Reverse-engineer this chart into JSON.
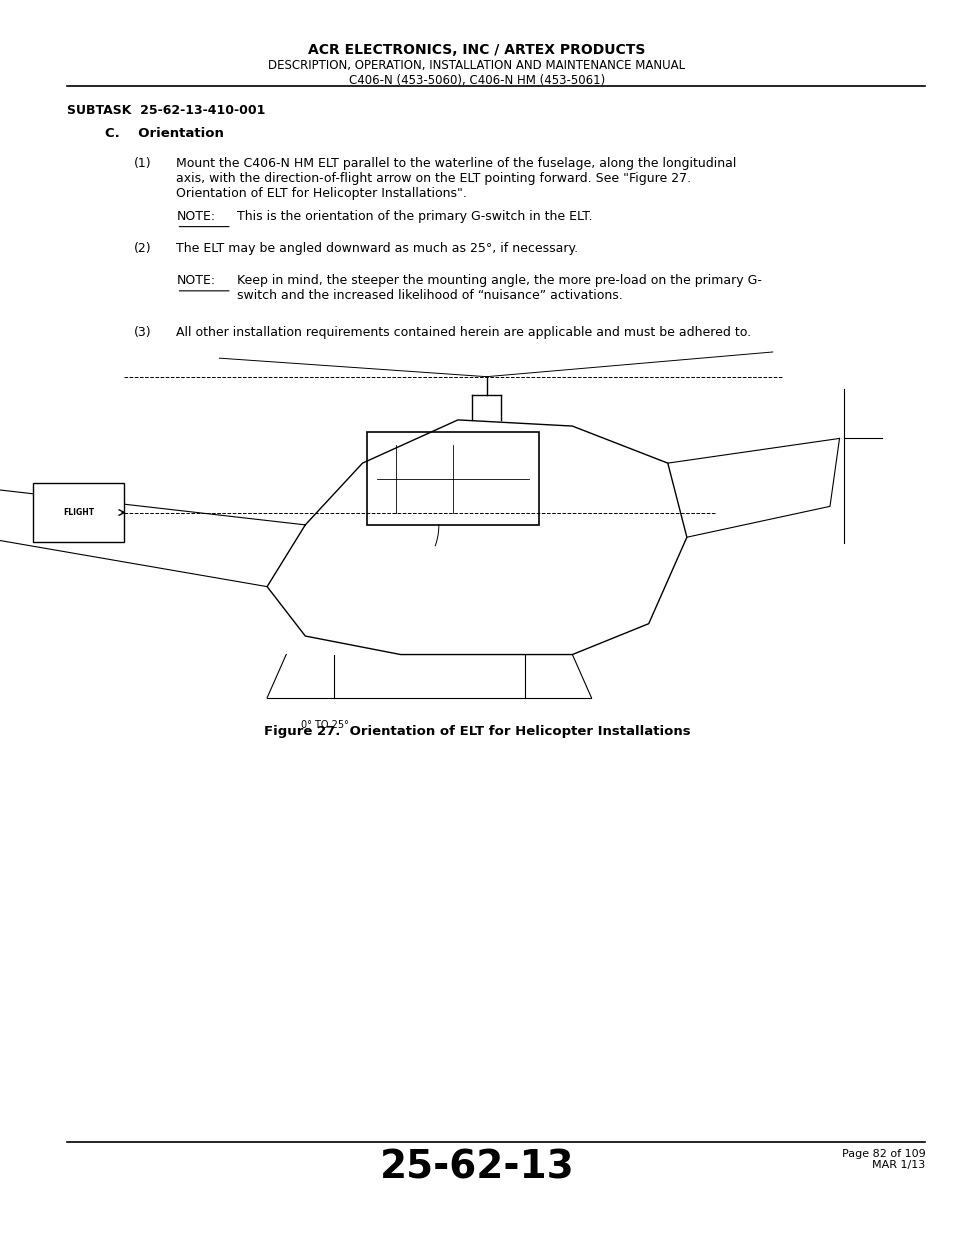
{
  "page_width": 9.54,
  "page_height": 12.35,
  "bg_color": "#ffffff",
  "header_line1": "ACR ELECTRONICS, INC / ARTEX PRODUCTS",
  "header_line2": "DESCRIPTION, OPERATION, INSTALLATION AND MAINTENANCE MANUAL",
  "header_line3": "C406-N (453-5060), C406-N HM (453-5061)",
  "subtask": "SUBTASK  25-62-13-410-001",
  "section_c": "C.    Orientation",
  "para1_num": "(1)",
  "para1_text": "Mount the C406-N HM ELT parallel to the waterline of the fuselage, along the longitudinal\naxis, with the direction-of-flight arrow on the ELT pointing forward. See \"Figure 27.\nOrientation of ELT for Helicopter Installations\".",
  "note1_label": "NOTE:",
  "note1_text": "This is the orientation of the primary G-switch in the ELT.",
  "para2_num": "(2)",
  "para2_text": "The ELT may be angled downward as much as 25°, if necessary.",
  "note2_label": "NOTE:",
  "note2_text": "Keep in mind, the steeper the mounting angle, the more pre-load on the primary G-\nswitch and the increased likelihood of “nuisance” activations.",
  "para3_num": "(3)",
  "para3_text": "All other installation requirements contained herein are applicable and must be adhered to.",
  "figure_caption": "Figure 27.  Orientation of ELT for Helicopter Installations",
  "footer_code": "25-62-13",
  "footer_page": "Page 82 of 109",
  "footer_date": "MAR 1/13"
}
